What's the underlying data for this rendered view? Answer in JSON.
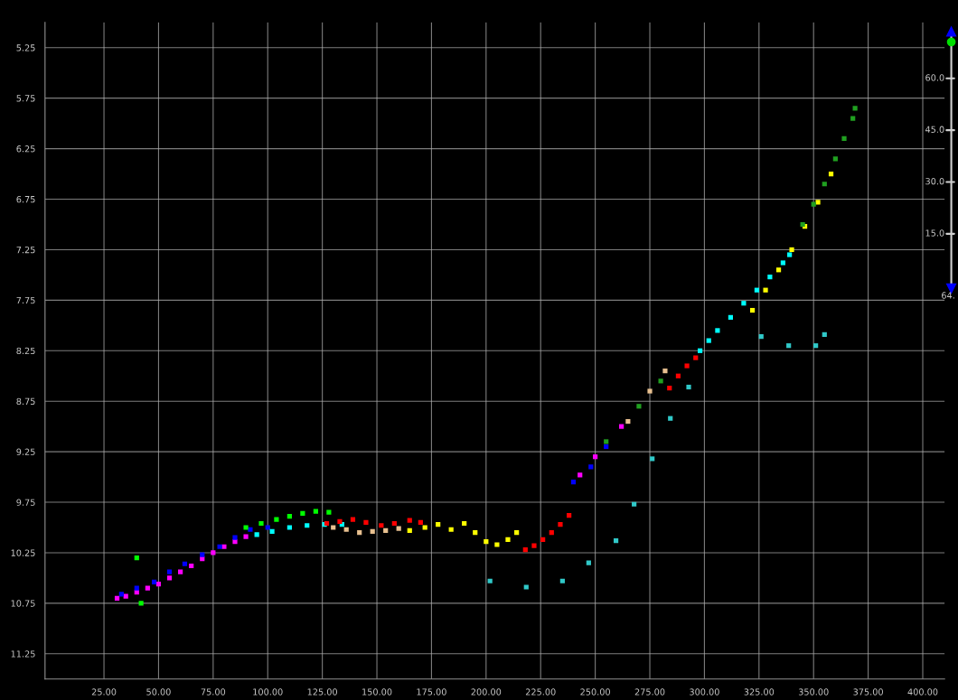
{
  "chart_data": [
    {
      "type": "scatter",
      "xlim": [
        -2,
        410
      ],
      "ylim": [
        11.5,
        5.0
      ],
      "xticks": [
        {
          "value": 25,
          "label": "25.00"
        },
        {
          "value": 50,
          "label": "50.00"
        },
        {
          "value": 75,
          "label": "75.00"
        },
        {
          "value": 100,
          "label": "100.00"
        },
        {
          "value": 125,
          "label": "125.00"
        },
        {
          "value": 150,
          "label": "150.00"
        },
        {
          "value": 175,
          "label": "175.00"
        },
        {
          "value": 200,
          "label": "200.00"
        },
        {
          "value": 225,
          "label": "225.00"
        },
        {
          "value": 250,
          "label": "250.00"
        },
        {
          "value": 275,
          "label": "275.00"
        },
        {
          "value": 300,
          "label": "300.00"
        },
        {
          "value": 325,
          "label": "325.00"
        },
        {
          "value": 350,
          "label": "350.00"
        },
        {
          "value": 375,
          "label": "375.00"
        },
        {
          "value": 400,
          "label": "400.00"
        }
      ],
      "yticks": [
        5.25,
        5.75,
        6.25,
        6.75,
        7.25,
        7.75,
        8.25,
        8.75,
        9.25,
        9.75,
        10.25,
        10.75,
        11.25
      ],
      "grid": true,
      "marker": "square",
      "legend": false,
      "series": [
        {
          "color": "#ff00ff",
          "x": [
            31,
            35,
            40,
            45,
            50,
            55,
            60,
            65,
            70,
            75,
            80,
            85,
            90,
            243,
            250,
            262
          ],
          "values": [
            10.7,
            10.68,
            10.64,
            10.6,
            10.56,
            10.5,
            10.44,
            10.38,
            10.31,
            10.25,
            10.19,
            10.14,
            10.09,
            9.48,
            9.3,
            9.0
          ]
        },
        {
          "color": "#0000ff",
          "x": [
            33,
            40,
            48,
            55,
            62,
            70,
            78,
            85,
            92,
            100,
            240,
            248,
            255
          ],
          "values": [
            10.66,
            10.6,
            10.54,
            10.44,
            10.36,
            10.27,
            10.19,
            10.1,
            10.02,
            10.0,
            9.55,
            9.4,
            9.2
          ]
        },
        {
          "color": "#00ffff",
          "x": [
            95,
            102,
            110,
            118,
            126,
            134,
            298,
            302,
            306,
            312,
            318,
            324,
            330,
            336,
            339
          ],
          "values": [
            10.07,
            10.04,
            10.0,
            9.98,
            9.97,
            9.97,
            8.25,
            8.15,
            8.05,
            7.92,
            7.78,
            7.65,
            7.52,
            7.38,
            7.3
          ]
        },
        {
          "color": "#00ff00",
          "x": [
            90,
            97,
            104,
            110,
            116,
            122,
            128,
            40,
            42
          ],
          "values": [
            10.0,
            9.96,
            9.92,
            9.89,
            9.86,
            9.84,
            9.85,
            10.3,
            10.75
          ]
        },
        {
          "color": "#ff0000",
          "x": [
            127,
            133,
            139,
            145,
            152,
            158,
            165,
            170,
            218,
            222,
            226,
            230,
            234,
            238,
            284,
            288,
            292,
            296
          ],
          "values": [
            9.96,
            9.94,
            9.92,
            9.95,
            9.98,
            9.96,
            9.93,
            9.95,
            10.22,
            10.18,
            10.12,
            10.05,
            9.97,
            9.88,
            8.62,
            8.5,
            8.4,
            8.32
          ]
        },
        {
          "color": "#ffff00",
          "x": [
            165,
            172,
            178,
            184,
            190,
            195,
            200,
            205,
            210,
            214,
            322,
            328,
            334,
            340,
            346,
            352,
            358
          ],
          "values": [
            10.03,
            10.0,
            9.97,
            10.02,
            9.96,
            10.05,
            10.14,
            10.17,
            10.12,
            10.05,
            7.85,
            7.65,
            7.45,
            7.25,
            7.02,
            6.78,
            6.5
          ]
        },
        {
          "color": "#e8c090",
          "x": [
            130,
            136,
            142,
            148,
            154,
            160,
            265,
            275,
            282
          ],
          "values": [
            10.0,
            10.02,
            10.05,
            10.04,
            10.03,
            10.01,
            8.95,
            8.65,
            8.45
          ]
        },
        {
          "color": "#20a020",
          "x": [
            345,
            350,
            355,
            360,
            364,
            368,
            369,
            255,
            270,
            280
          ],
          "values": [
            7.0,
            6.8,
            6.6,
            6.35,
            6.15,
            5.95,
            5.85,
            9.15,
            8.8,
            8.55
          ]
        },
        {
          "color": "#30c8c8",
          "x": [
            201.8,
            218.4,
            235.0,
            247.0,
            259.5,
            267.8,
            276.1,
            284.4,
            292.8,
            326,
            338.6,
            351,
            355
          ],
          "values": [
            10.53,
            10.59,
            10.53,
            10.35,
            10.13,
            9.77,
            9.32,
            8.92,
            8.61,
            8.11,
            8.2,
            8.2,
            8.09
          ]
        }
      ],
      "annotations": [
        "60.0",
        "45.0",
        "30.0",
        "15.0",
        "64."
      ]
    }
  ]
}
